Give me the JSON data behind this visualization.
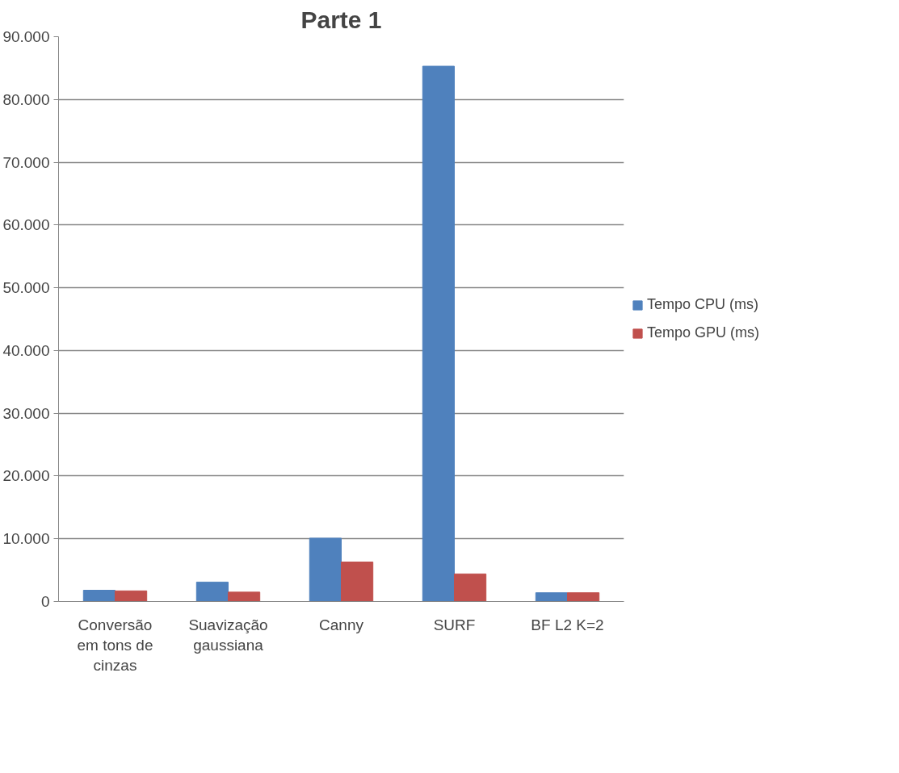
{
  "chart_data": {
    "type": "bar",
    "title": "Parte 1",
    "categories": [
      "Conversão em tons de cinzas",
      "Suavização gaussiana",
      "Canny",
      "SURF",
      "BF L2 K=2"
    ],
    "series": [
      {
        "name": "Tempo CPU (ms)",
        "color": "#4f81bd",
        "values": [
          1800,
          3100,
          10100,
          85300,
          1400
        ]
      },
      {
        "name": "Tempo GPU (ms)",
        "color": "#c0504d",
        "values": [
          1700,
          1500,
          6300,
          4400,
          1400
        ]
      }
    ],
    "ylim": [
      0,
      90000
    ],
    "yticks": [
      0,
      {
        "value": 10000,
        "label": "10.000"
      },
      {
        "value": 20000,
        "label": "20.000"
      },
      {
        "value": 30000,
        "label": "30.000"
      },
      {
        "value": 40000,
        "label": "40.000"
      },
      {
        "value": 50000,
        "label": "50.000"
      },
      {
        "value": 60000,
        "label": "60.000"
      },
      {
        "value": 70000,
        "label": "70.000"
      },
      {
        "value": 80000,
        "label": "80.000"
      },
      {
        "value": 90000,
        "label": "90.000"
      }
    ],
    "grid": "y",
    "legend": "right"
  }
}
